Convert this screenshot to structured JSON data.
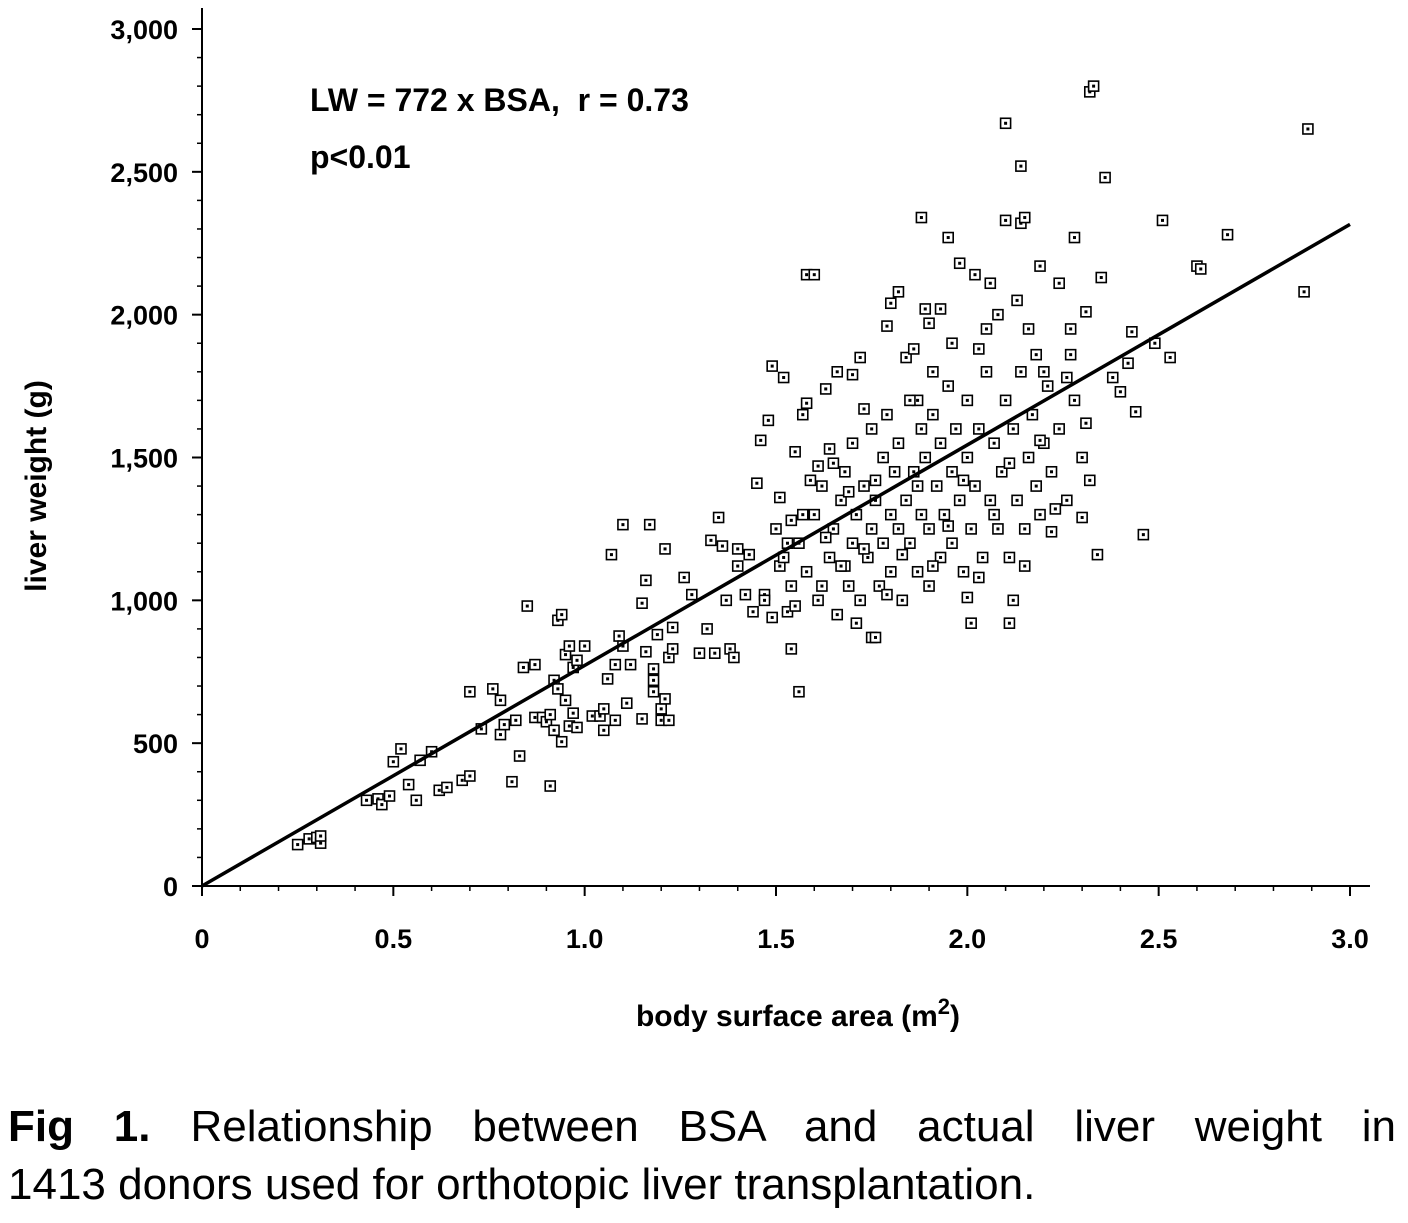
{
  "chart_data": {
    "type": "scatter",
    "xlabel": "body surface area (m",
    "xlabel_sup": "2",
    "xlabel_end": ")",
    "ylabel": "liver weight (g)",
    "xlim": [
      0,
      3.0
    ],
    "ylim": [
      0,
      3000
    ],
    "x_ticks": [
      0,
      0.5,
      1.0,
      1.5,
      2.0,
      2.5,
      3.0
    ],
    "x_tick_labels": [
      "0",
      "0.5",
      "1.0",
      "1.5",
      "2.0",
      "2.5",
      "3.0"
    ],
    "y_ticks": [
      0,
      500,
      1000,
      1500,
      2000,
      2500,
      3000
    ],
    "y_tick_labels": [
      "0",
      "500",
      "1,000",
      "1,500",
      "2,000",
      "2,500",
      "3,000"
    ],
    "annotations": [
      "LW = 772 x BSA,  r = 0.73",
      "p<0.01"
    ],
    "regression": {
      "slope": 772,
      "intercept": 0,
      "x_range": [
        0,
        3.0
      ]
    },
    "n": 1413,
    "points": [
      [
        0.25,
        145
      ],
      [
        0.28,
        165
      ],
      [
        0.3,
        170
      ],
      [
        0.31,
        150
      ],
      [
        0.31,
        175
      ],
      [
        0.43,
        300
      ],
      [
        0.46,
        305
      ],
      [
        0.47,
        285
      ],
      [
        0.49,
        315
      ],
      [
        0.5,
        435
      ],
      [
        0.52,
        480
      ],
      [
        0.54,
        355
      ],
      [
        0.56,
        300
      ],
      [
        0.57,
        440
      ],
      [
        0.6,
        470
      ],
      [
        0.62,
        335
      ],
      [
        0.64,
        345
      ],
      [
        0.68,
        370
      ],
      [
        0.7,
        385
      ],
      [
        0.7,
        680
      ],
      [
        0.73,
        550
      ],
      [
        0.76,
        690
      ],
      [
        0.78,
        650
      ],
      [
        0.78,
        530
      ],
      [
        0.79,
        565
      ],
      [
        0.81,
        365
      ],
      [
        0.82,
        580
      ],
      [
        0.83,
        455
      ],
      [
        0.84,
        765
      ],
      [
        0.85,
        980
      ],
      [
        0.87,
        775
      ],
      [
        0.87,
        590
      ],
      [
        0.89,
        590
      ],
      [
        0.9,
        575
      ],
      [
        0.91,
        600
      ],
      [
        0.91,
        350
      ],
      [
        0.92,
        545
      ],
      [
        0.92,
        720
      ],
      [
        0.93,
        690
      ],
      [
        0.93,
        930
      ],
      [
        0.94,
        950
      ],
      [
        0.94,
        505
      ],
      [
        0.95,
        810
      ],
      [
        0.95,
        650
      ],
      [
        0.96,
        840
      ],
      [
        0.96,
        560
      ],
      [
        0.97,
        605
      ],
      [
        0.97,
        765
      ],
      [
        0.98,
        790
      ],
      [
        0.98,
        555
      ],
      [
        1.0,
        840
      ],
      [
        1.02,
        595
      ],
      [
        1.04,
        595
      ],
      [
        1.05,
        545
      ],
      [
        1.05,
        620
      ],
      [
        1.06,
        725
      ],
      [
        1.07,
        1160
      ],
      [
        1.08,
        580
      ],
      [
        1.08,
        775
      ],
      [
        1.09,
        875
      ],
      [
        1.1,
        1265
      ],
      [
        1.1,
        840
      ],
      [
        1.11,
        640
      ],
      [
        1.12,
        775
      ],
      [
        1.15,
        585
      ],
      [
        1.15,
        990
      ],
      [
        1.16,
        820
      ],
      [
        1.16,
        1070
      ],
      [
        1.17,
        1265
      ],
      [
        1.18,
        760
      ],
      [
        1.18,
        720
      ],
      [
        1.18,
        680
      ],
      [
        1.19,
        880
      ],
      [
        1.2,
        580
      ],
      [
        1.2,
        620
      ],
      [
        1.21,
        655
      ],
      [
        1.21,
        1180
      ],
      [
        1.22,
        580
      ],
      [
        1.22,
        800
      ],
      [
        1.23,
        830
      ],
      [
        1.23,
        905
      ],
      [
        1.26,
        1080
      ],
      [
        1.28,
        1020
      ],
      [
        1.3,
        815
      ],
      [
        1.32,
        900
      ],
      [
        1.33,
        1210
      ],
      [
        1.34,
        815
      ],
      [
        1.35,
        1290
      ],
      [
        1.36,
        1190
      ],
      [
        1.37,
        1000
      ],
      [
        1.38,
        830
      ],
      [
        1.39,
        800
      ],
      [
        1.4,
        1120
      ],
      [
        1.4,
        1180
      ],
      [
        1.42,
        1020
      ],
      [
        1.43,
        1160
      ],
      [
        1.44,
        960
      ],
      [
        1.45,
        1410
      ],
      [
        1.46,
        1560
      ],
      [
        1.47,
        1020
      ],
      [
        1.48,
        1630
      ],
      [
        1.49,
        1820
      ],
      [
        1.5,
        1250
      ],
      [
        1.51,
        1120
      ],
      [
        1.52,
        1780
      ],
      [
        1.53,
        960
      ],
      [
        1.54,
        1280
      ],
      [
        1.54,
        830
      ],
      [
        1.55,
        1520
      ],
      [
        1.56,
        680
      ],
      [
        1.57,
        1650
      ],
      [
        1.58,
        1690
      ],
      [
        1.58,
        2140
      ],
      [
        1.6,
        2140
      ],
      [
        1.61,
        1470
      ],
      [
        1.63,
        1740
      ],
      [
        1.64,
        1530
      ],
      [
        1.66,
        1800
      ],
      [
        1.68,
        1120
      ],
      [
        1.7,
        1790
      ],
      [
        1.72,
        1850
      ],
      [
        1.73,
        1670
      ],
      [
        1.75,
        870
      ],
      [
        1.76,
        870
      ],
      [
        1.79,
        1960
      ],
      [
        1.8,
        2040
      ],
      [
        1.82,
        2080
      ],
      [
        1.84,
        1850
      ],
      [
        1.86,
        1880
      ],
      [
        1.87,
        1700
      ],
      [
        1.88,
        2340
      ],
      [
        1.89,
        2020
      ],
      [
        1.9,
        1970
      ],
      [
        1.91,
        1800
      ],
      [
        1.93,
        2020
      ],
      [
        1.95,
        2270
      ],
      [
        1.96,
        1900
      ],
      [
        1.98,
        2180
      ],
      [
        2.0,
        1010
      ],
      [
        2.01,
        920
      ],
      [
        2.02,
        2140
      ],
      [
        2.03,
        1880
      ],
      [
        2.05,
        1950
      ],
      [
        2.06,
        2110
      ],
      [
        2.08,
        2000
      ],
      [
        2.1,
        2330
      ],
      [
        2.1,
        2670
      ],
      [
        2.11,
        920
      ],
      [
        2.12,
        1000
      ],
      [
        2.13,
        2050
      ],
      [
        2.14,
        2320
      ],
      [
        2.14,
        2520
      ],
      [
        2.15,
        2340
      ],
      [
        2.16,
        1950
      ],
      [
        2.18,
        1860
      ],
      [
        2.19,
        2170
      ],
      [
        2.2,
        1800
      ],
      [
        2.22,
        1240
      ],
      [
        2.24,
        2110
      ],
      [
        2.26,
        1780
      ],
      [
        2.27,
        1950
      ],
      [
        2.28,
        2270
      ],
      [
        2.3,
        1290
      ],
      [
        2.31,
        2010
      ],
      [
        2.31,
        1620
      ],
      [
        2.32,
        2780
      ],
      [
        2.33,
        2800
      ],
      [
        2.34,
        1160
      ],
      [
        2.35,
        2130
      ],
      [
        2.36,
        2480
      ],
      [
        2.38,
        1780
      ],
      [
        2.4,
        1730
      ],
      [
        2.42,
        1830
      ],
      [
        2.43,
        1940
      ],
      [
        2.44,
        1660
      ],
      [
        2.46,
        1230
      ],
      [
        2.49,
        1900
      ],
      [
        2.51,
        2330
      ],
      [
        2.53,
        1850
      ],
      [
        2.6,
        2170
      ],
      [
        2.61,
        2160
      ],
      [
        2.68,
        2280
      ],
      [
        2.88,
        2080
      ],
      [
        2.89,
        2650
      ],
      [
        1.56,
        1200
      ],
      [
        1.58,
        1100
      ],
      [
        1.6,
        1300
      ],
      [
        1.62,
        1050
      ],
      [
        1.62,
        1400
      ],
      [
        1.64,
        1150
      ],
      [
        1.65,
        1250
      ],
      [
        1.66,
        950
      ],
      [
        1.67,
        1350
      ],
      [
        1.68,
        1450
      ],
      [
        1.69,
        1050
      ],
      [
        1.7,
        1200
      ],
      [
        1.7,
        1550
      ],
      [
        1.71,
        1300
      ],
      [
        1.72,
        1000
      ],
      [
        1.73,
        1400
      ],
      [
        1.74,
        1150
      ],
      [
        1.75,
        1600
      ],
      [
        1.75,
        1250
      ],
      [
        1.76,
        1350
      ],
      [
        1.77,
        1050
      ],
      [
        1.78,
        1500
      ],
      [
        1.78,
        1200
      ],
      [
        1.79,
        1650
      ],
      [
        1.8,
        1300
      ],
      [
        1.8,
        1100
      ],
      [
        1.81,
        1450
      ],
      [
        1.82,
        1250
      ],
      [
        1.82,
        1550
      ],
      [
        1.83,
        1000
      ],
      [
        1.84,
        1350
      ],
      [
        1.85,
        1700
      ],
      [
        1.85,
        1200
      ],
      [
        1.86,
        1450
      ],
      [
        1.87,
        1100
      ],
      [
        1.88,
        1600
      ],
      [
        1.88,
        1300
      ],
      [
        1.89,
        1500
      ],
      [
        1.9,
        1250
      ],
      [
        1.9,
        1050
      ],
      [
        1.91,
        1650
      ],
      [
        1.92,
        1400
      ],
      [
        1.93,
        1150
      ],
      [
        1.93,
        1550
      ],
      [
        1.94,
        1300
      ],
      [
        1.95,
        1750
      ],
      [
        1.96,
        1450
      ],
      [
        1.96,
        1200
      ],
      [
        1.97,
        1600
      ],
      [
        1.98,
        1350
      ],
      [
        1.99,
        1100
      ],
      [
        2.0,
        1500
      ],
      [
        2.0,
        1700
      ],
      [
        2.01,
        1250
      ],
      [
        2.02,
        1400
      ],
      [
        2.03,
        1600
      ],
      [
        2.04,
        1150
      ],
      [
        2.05,
        1800
      ],
      [
        2.06,
        1350
      ],
      [
        2.07,
        1550
      ],
      [
        2.08,
        1250
      ],
      [
        2.09,
        1450
      ],
      [
        2.1,
        1700
      ],
      [
        2.11,
        1150
      ],
      [
        2.12,
        1600
      ],
      [
        2.13,
        1350
      ],
      [
        2.14,
        1800
      ],
      [
        2.15,
        1250
      ],
      [
        2.16,
        1500
      ],
      [
        2.17,
        1650
      ],
      [
        2.18,
        1400
      ],
      [
        2.19,
        1300
      ],
      [
        2.2,
        1550
      ],
      [
        2.21,
        1750
      ],
      [
        2.22,
        1450
      ],
      [
        2.24,
        1600
      ],
      [
        2.26,
        1350
      ],
      [
        2.28,
        1700
      ],
      [
        2.3,
        1500
      ],
      [
        2.32,
        1420
      ],
      [
        1.52,
        1150
      ],
      [
        1.54,
        1050
      ],
      [
        1.55,
        980
      ],
      [
        1.57,
        1300
      ],
      [
        1.59,
        1420
      ],
      [
        1.61,
        1000
      ],
      [
        1.63,
        1220
      ],
      [
        1.65,
        1480
      ],
      [
        1.67,
        1120
      ],
      [
        1.69,
        1380
      ],
      [
        1.71,
        920
      ],
      [
        1.73,
        1180
      ],
      [
        1.76,
        1420
      ],
      [
        1.79,
        1020
      ],
      [
        1.83,
        1160
      ],
      [
        1.87,
        1400
      ],
      [
        1.91,
        1120
      ],
      [
        1.95,
        1260
      ],
      [
        1.99,
        1420
      ],
      [
        2.03,
        1080
      ],
      [
        2.07,
        1300
      ],
      [
        2.11,
        1480
      ],
      [
        2.15,
        1120
      ],
      [
        2.19,
        1560
      ],
      [
        2.23,
        1320
      ],
      [
        2.27,
        1860
      ],
      [
        1.47,
        1000
      ],
      [
        1.49,
        940
      ],
      [
        1.51,
        1360
      ],
      [
        1.53,
        1200
      ]
    ]
  },
  "caption": {
    "fig_label": "Fig 1.",
    "line1": "Relationship between BSA and actual liver weight in",
    "line2": "1413 donors used for orthotopic liver transplantation."
  }
}
